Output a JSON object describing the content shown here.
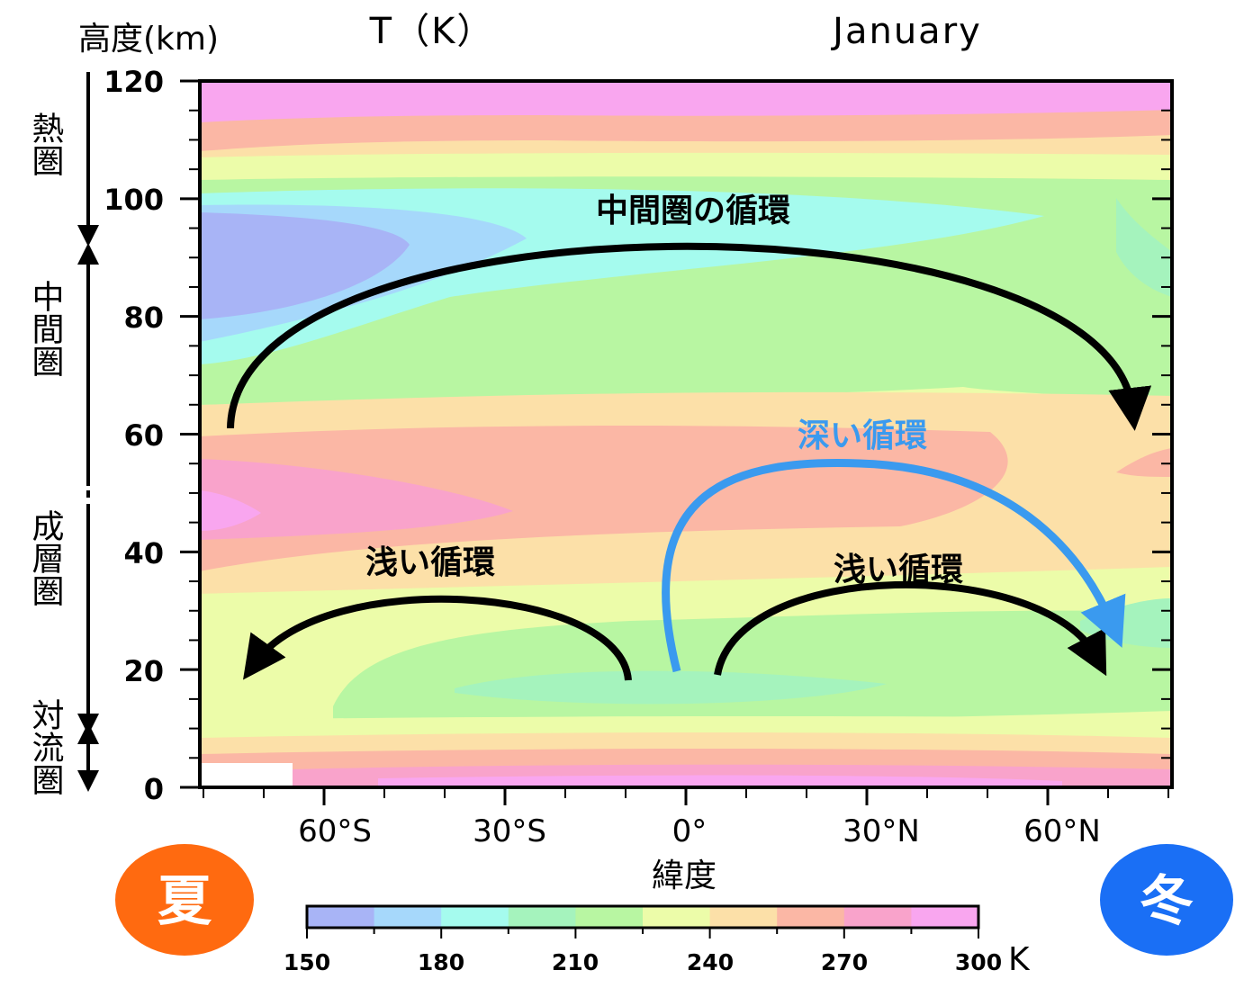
{
  "chart_data": {
    "type": "heatmap",
    "title": "T（K）",
    "month": "January",
    "ylabel": "高度(km)",
    "xlabel": "緯度",
    "ylim": [
      0,
      120
    ],
    "yticks": [
      "120",
      "100",
      "80",
      "60",
      "40",
      "20",
      "0"
    ],
    "xticks": [
      {
        "label": "60°S",
        "lat": -60
      },
      {
        "label": "30°S",
        "lat": -30
      },
      {
        "label": "0°",
        "lat": 0
      },
      {
        "label": "30°N",
        "lat": 30
      },
      {
        "label": "60°N",
        "lat": 60
      }
    ],
    "layers": [
      "熱圏",
      "中間圏",
      "成層圏",
      "対流圏"
    ],
    "colorbar": {
      "ticks": [
        "150",
        "180",
        "210",
        "240",
        "270",
        "300"
      ],
      "unit": "K",
      "levels": [
        {
          "min": 150,
          "max": 165,
          "color": "#a8b4f6"
        },
        {
          "min": 165,
          "max": 180,
          "color": "#a6d8fb"
        },
        {
          "min": 180,
          "max": 195,
          "color": "#a5fbee"
        },
        {
          "min": 195,
          "max": 210,
          "color": "#a5f3bd"
        },
        {
          "min": 210,
          "max": 225,
          "color": "#b8f6a2"
        },
        {
          "min": 225,
          "max": 240,
          "color": "#ecfca9"
        },
        {
          "min": 240,
          "max": 255,
          "color": "#fce0a8"
        },
        {
          "min": 255,
          "max": 270,
          "color": "#fbb7a5"
        },
        {
          "min": 270,
          "max": 285,
          "color": "#f9a3cb"
        },
        {
          "min": 285,
          "max": 300,
          "color": "#f9a6ef"
        }
      ]
    },
    "circulations": {
      "mesosphere": "中間圏の循環",
      "deep": "深い循環",
      "shallow_south": "浅い循環",
      "shallow_north": "浅い循環"
    },
    "seasons": {
      "summer": "夏",
      "winter": "冬"
    },
    "colors": {
      "summer": "#ff6a10",
      "winter": "#1a6ff5",
      "deep_arrow": "#3a9aef",
      "arrow": "#000000"
    }
  }
}
